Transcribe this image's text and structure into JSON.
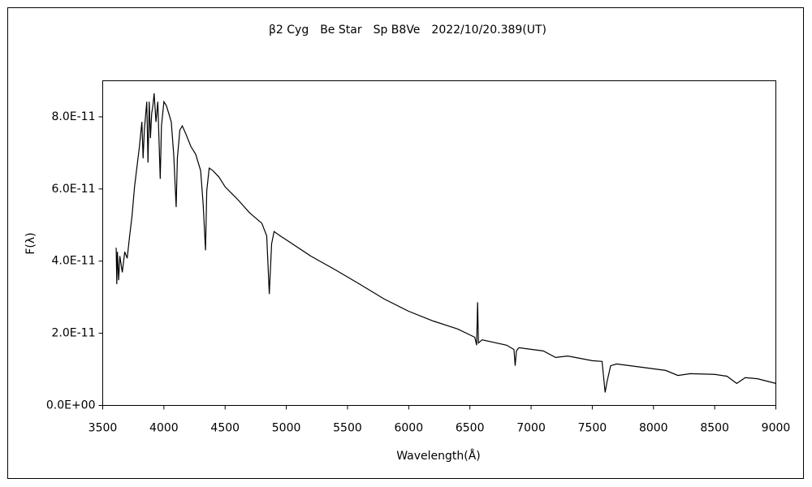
{
  "chart_data": {
    "type": "line",
    "title": "β2 Cyg　Be Star　Sp B8Ve　2022/10/20.389(UT)",
    "x_label": "Wavelength(Å)",
    "y_label": "F(λ)",
    "xlim": [
      3500,
      9000
    ],
    "xticks": [
      3500,
      4000,
      4500,
      5000,
      5500,
      6000,
      6500,
      7000,
      7500,
      8000,
      8500,
      9000
    ],
    "ylim": [
      0,
      9e-11
    ],
    "yticks": [
      {
        "value": 0,
        "label": "0.0E+00"
      },
      {
        "value": 2e-11,
        "label": "2.0E-11"
      },
      {
        "value": 4e-11,
        "label": "4.0E-11"
      },
      {
        "value": 6e-11,
        "label": "6.0E-11"
      },
      {
        "value": 8e-11,
        "label": "8.0E-11"
      }
    ],
    "grid": false,
    "series": [
      {
        "color": "#000000",
        "x": [
          3610,
          3615,
          3620,
          3630,
          3640,
          3660,
          3680,
          3700,
          3720,
          3740,
          3760,
          3780,
          3800,
          3820,
          3830,
          3840,
          3860,
          3870,
          3880,
          3890,
          3900,
          3910,
          3920,
          3935,
          3950,
          3970,
          3980,
          4000,
          4020,
          4040,
          4060,
          4080,
          4100,
          4110,
          4130,
          4150,
          4180,
          4220,
          4260,
          4300,
          4320,
          4340,
          4350,
          4370,
          4400,
          4450,
          4500,
          4600,
          4700,
          4800,
          4840,
          4861,
          4880,
          4900,
          4950,
          5000,
          5200,
          5400,
          5600,
          5800,
          6000,
          6200,
          6400,
          6540,
          6555,
          6563,
          6570,
          6600,
          6800,
          6860,
          6870,
          6880,
          6900,
          7100,
          7200,
          7300,
          7500,
          7580,
          7605,
          7620,
          7650,
          7700,
          7900,
          8100,
          8200,
          8300,
          8500,
          8600,
          8680,
          8750,
          8850,
          9000
        ],
        "values": [
          4.37e-11,
          3.36e-11,
          4.26e-11,
          3.47e-11,
          4.14e-11,
          3.69e-11,
          4.26e-11,
          4.08e-11,
          4.7e-11,
          5.27e-11,
          6.06e-11,
          6.62e-11,
          7.18e-11,
          7.86e-11,
          6.85e-11,
          7.63e-11,
          8.42e-11,
          6.73e-11,
          8.42e-11,
          7.41e-11,
          8.09e-11,
          8.31e-11,
          8.65e-11,
          7.86e-11,
          8.42e-11,
          6.28e-11,
          7.75e-11,
          8.42e-11,
          8.31e-11,
          8.09e-11,
          7.86e-11,
          6.96e-11,
          5.5e-11,
          6.85e-11,
          7.63e-11,
          7.75e-11,
          7.52e-11,
          7.18e-11,
          6.96e-11,
          6.51e-11,
          5.61e-11,
          4.3e-11,
          5.95e-11,
          6.58e-11,
          6.51e-11,
          6.33e-11,
          6.06e-11,
          5.72e-11,
          5.34e-11,
          5.05e-11,
          4.7e-11,
          3.09e-11,
          4.48e-11,
          4.82e-11,
          4.7e-11,
          4.59e-11,
          4.14e-11,
          3.76e-11,
          3.36e-11,
          2.95e-11,
          2.61e-11,
          2.34e-11,
          2.12e-11,
          1.89e-11,
          1.67e-11,
          2.86e-11,
          1.73e-11,
          1.82e-11,
          1.67e-11,
          1.55e-11,
          1.1e-11,
          1.51e-11,
          1.6e-11,
          1.51e-11,
          1.33e-11,
          1.37e-11,
          1.24e-11,
          1.22e-11,
          3.6e-12,
          6.5e-12,
          1.1e-11,
          1.15e-11,
          1.06e-11,
          9.7e-12,
          8.3e-12,
          8.8e-12,
          8.6e-12,
          8.1e-12,
          6.1e-12,
          7.7e-12,
          7.4e-12,
          6.1e-12
        ]
      }
    ]
  }
}
